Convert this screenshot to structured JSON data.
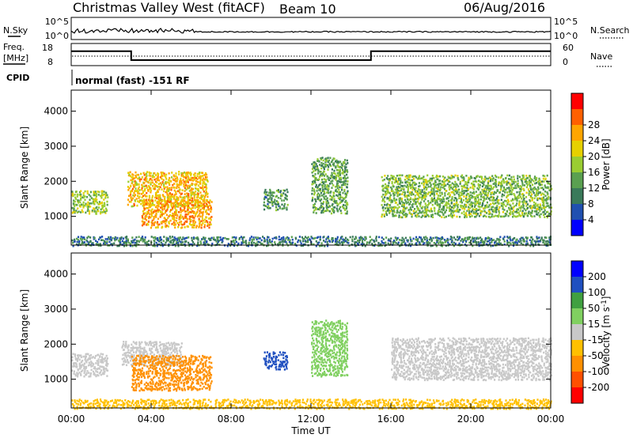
{
  "header": {
    "station": "Christmas Valley West (fitACF)",
    "beam": "Beam 10",
    "date": "06/Aug/2016"
  },
  "side_labels": {
    "nsky": "N.Sky",
    "nsearch": "N.Search",
    "freq_line1": "Freq.",
    "freq_line2": "[MHz]",
    "nave": "Nave",
    "cpid": "CPID"
  },
  "cpid_text": "normal (fast) -151 RF",
  "noise_axis": {
    "low": "10^0",
    "high": "10^5"
  },
  "freq_axis": {
    "left_ticks": [
      "18",
      "8"
    ],
    "right_ticks": [
      "60",
      "0"
    ]
  },
  "range_axis": {
    "label": "Slant Range [km]",
    "ticks": [
      "1000",
      "2000",
      "3000",
      "4000"
    ]
  },
  "time_axis": {
    "label": "Time UT",
    "ticks": [
      "00:00",
      "04:00",
      "08:00",
      "12:00",
      "16:00",
      "20:00",
      "00:00"
    ]
  },
  "power_bar": {
    "label": "Power [dB]",
    "ticks": [
      "4",
      "8",
      "12",
      "16",
      "20",
      "24",
      "28"
    ],
    "colors": [
      "#0000ff",
      "#2050b0",
      "#3a7a5a",
      "#5aa050",
      "#9acd32",
      "#e6d000",
      "#ffa500",
      "#ff6000",
      "#ff0000"
    ]
  },
  "velocity_bar": {
    "label": "Velocity [m s",
    "label_sup": "-1",
    "label_end": "]",
    "ticks": [
      "-200",
      "-100",
      "-50",
      "-15",
      "15",
      "50",
      "100",
      "200"
    ],
    "colors": [
      "#ff0000",
      "#ff5000",
      "#ff9000",
      "#ffc000",
      "#c8c8c8",
      "#80d060",
      "#40a040",
      "#2050c0",
      "#0000ff"
    ]
  },
  "chart_data": [
    {
      "type": "heatmap",
      "name": "power",
      "x_label": "Time UT",
      "y_label": "Slant Range [km]",
      "x_range_hours": [
        0,
        24
      ],
      "y_range_km": [
        180,
        4600
      ],
      "z_label": "Power [dB]",
      "z_ticks": [
        4,
        8,
        12,
        16,
        20,
        24,
        28
      ],
      "regions": [
        {
          "t": [
            0.0,
            1.8
          ],
          "r": [
            1100,
            1750
          ],
          "z": 18
        },
        {
          "t": [
            2.8,
            6.8
          ],
          "r": [
            1300,
            2300
          ],
          "z": 24
        },
        {
          "t": [
            3.5,
            7.0
          ],
          "r": [
            700,
            1500
          ],
          "z": 26
        },
        {
          "t": [
            9.6,
            10.8
          ],
          "r": [
            1200,
            1800
          ],
          "z": 12
        },
        {
          "t": [
            12.0,
            13.8
          ],
          "r": [
            1100,
            2700
          ],
          "z": 14
        },
        {
          "t": [
            15.5,
            24.0
          ],
          "r": [
            1000,
            2200
          ],
          "z": 16
        },
        {
          "t": [
            0.0,
            24.0
          ],
          "r": [
            180,
            450
          ],
          "z": 10
        }
      ]
    },
    {
      "type": "heatmap",
      "name": "velocity",
      "x_label": "Time UT",
      "y_label": "Slant Range [km]",
      "x_range_hours": [
        0,
        24
      ],
      "y_range_km": [
        180,
        4600
      ],
      "z_label": "Velocity [m s-1]",
      "z_ticks": [
        -200,
        -100,
        -50,
        -15,
        15,
        50,
        100,
        200
      ],
      "regions": [
        {
          "t": [
            0.0,
            1.8
          ],
          "r": [
            1100,
            1750
          ],
          "z": 0
        },
        {
          "t": [
            2.5,
            5.5
          ],
          "r": [
            1400,
            2100
          ],
          "z": 0
        },
        {
          "t": [
            3.0,
            7.0
          ],
          "r": [
            700,
            1700
          ],
          "z": -60
        },
        {
          "t": [
            9.6,
            10.8
          ],
          "r": [
            1300,
            1800
          ],
          "z": 120
        },
        {
          "t": [
            12.0,
            13.8
          ],
          "r": [
            1100,
            2700
          ],
          "z": 40
        },
        {
          "t": [
            16.0,
            24.0
          ],
          "r": [
            1000,
            2200
          ],
          "z": 0
        },
        {
          "t": [
            0.0,
            24.0
          ],
          "r": [
            180,
            450
          ],
          "z": -20
        }
      ]
    },
    {
      "type": "line",
      "name": "transmit frequency",
      "y_label": "Freq. [MHz]",
      "x_hours": [
        0,
        3.0,
        3.0,
        15.0,
        15.0,
        24
      ],
      "y_mhz": [
        14.5,
        14.5,
        10.5,
        10.5,
        14.5,
        14.5
      ]
    }
  ]
}
